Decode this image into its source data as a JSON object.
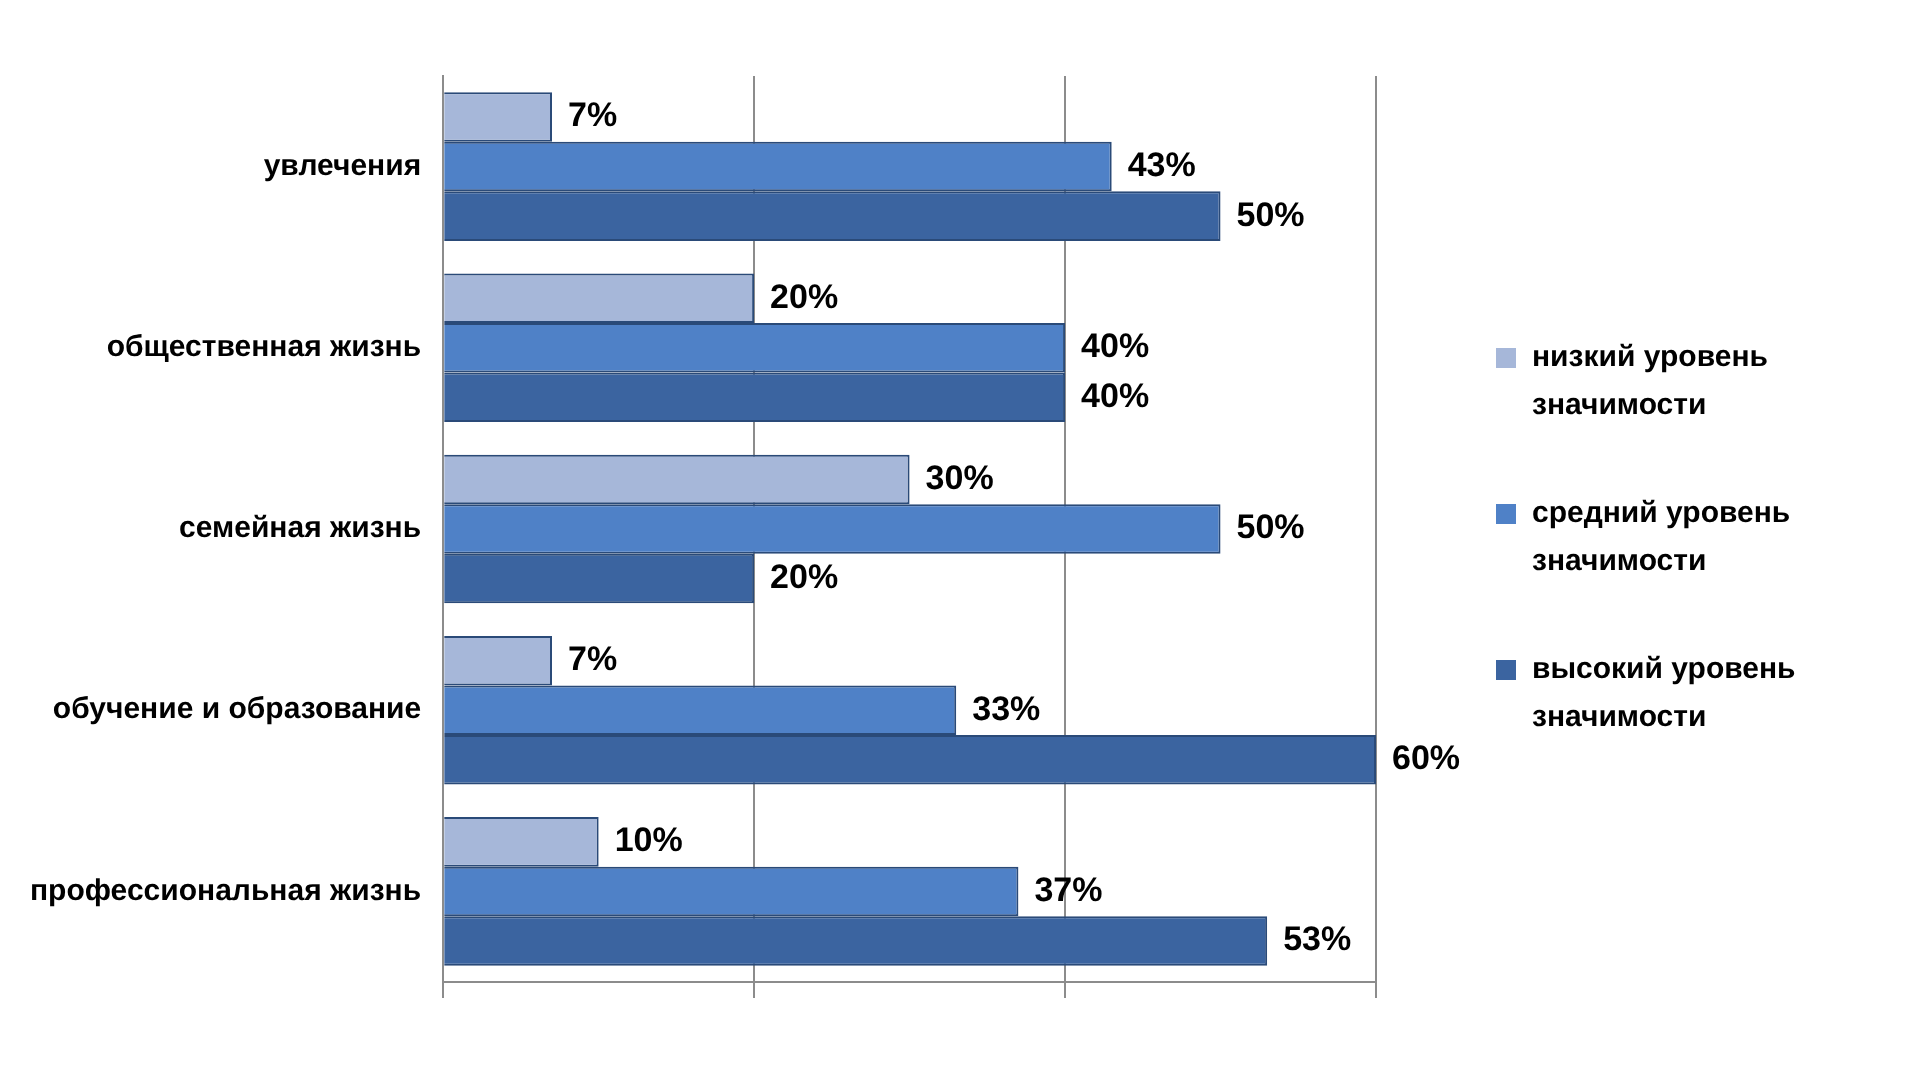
{
  "chart_data": {
    "type": "bar",
    "orientation": "horizontal",
    "categories": [
      "увлечения",
      "общественная жизнь",
      "семейная жизнь",
      "обучение и образование",
      "профессиональная жизнь"
    ],
    "series": [
      {
        "name": "низкий уровень значимости",
        "color": "#a6b7d9",
        "values": [
          7,
          20,
          30,
          7,
          10
        ],
        "value_labels": [
          "7%",
          "20%",
          "30%",
          "7%",
          "10%"
        ]
      },
      {
        "name": "средний уровень значимости",
        "color": "#4f81c7",
        "values": [
          43,
          40,
          50,
          33,
          37
        ],
        "value_labels": [
          "43%",
          "40%",
          "50%",
          "33%",
          "37%"
        ]
      },
      {
        "name": "высокий уровень значимости",
        "color": "#3b64a0",
        "values": [
          50,
          40,
          20,
          60,
          53
        ],
        "value_labels": [
          "50%",
          "40%",
          "20%",
          "60%",
          "53%"
        ]
      }
    ],
    "xlim": [
      0,
      60
    ],
    "xticks": [
      {
        "value": 0,
        "label": null
      },
      {
        "value": 20,
        "label": null
      },
      {
        "value": 40,
        "label": null
      },
      {
        "value": 60,
        "label": null
      }
    ],
    "grid": "x",
    "legend": "right",
    "tick_labels": "y"
  }
}
